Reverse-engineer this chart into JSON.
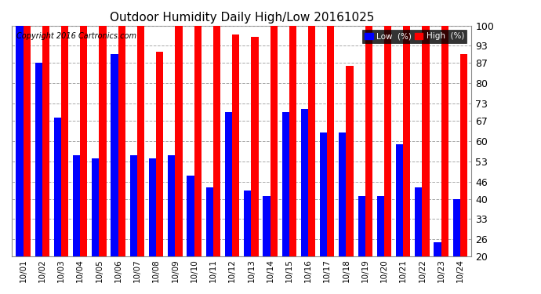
{
  "title": "Outdoor Humidity Daily High/Low 20161025",
  "copyright": "Copyright 2016 Cartronics.com",
  "categories": [
    "10/01",
    "10/02",
    "10/03",
    "10/04",
    "10/05",
    "10/06",
    "10/07",
    "10/08",
    "10/09",
    "10/10",
    "10/11",
    "10/12",
    "10/13",
    "10/14",
    "10/15",
    "10/16",
    "10/17",
    "10/18",
    "10/19",
    "10/20",
    "10/21",
    "10/22",
    "10/23",
    "10/24"
  ],
  "high_values": [
    100,
    100,
    100,
    100,
    100,
    100,
    100,
    91,
    100,
    100,
    100,
    97,
    96,
    100,
    100,
    100,
    100,
    86,
    100,
    100,
    100,
    100,
    100,
    90
  ],
  "low_values": [
    100,
    87,
    68,
    55,
    54,
    90,
    55,
    54,
    55,
    48,
    44,
    70,
    43,
    41,
    70,
    71,
    63,
    63,
    41,
    41,
    59,
    44,
    25,
    40
  ],
  "high_color": "#ff0000",
  "low_color": "#0000ff",
  "bg_color": "#ffffff",
  "grid_color": "#aaaaaa",
  "ylim_min": 20,
  "ylim_max": 100,
  "yticks": [
    20,
    26,
    33,
    40,
    46,
    53,
    60,
    67,
    73,
    80,
    87,
    93,
    100
  ],
  "bar_width": 0.38,
  "legend_low_label": "Low  (%)",
  "legend_high_label": "High  (%)"
}
